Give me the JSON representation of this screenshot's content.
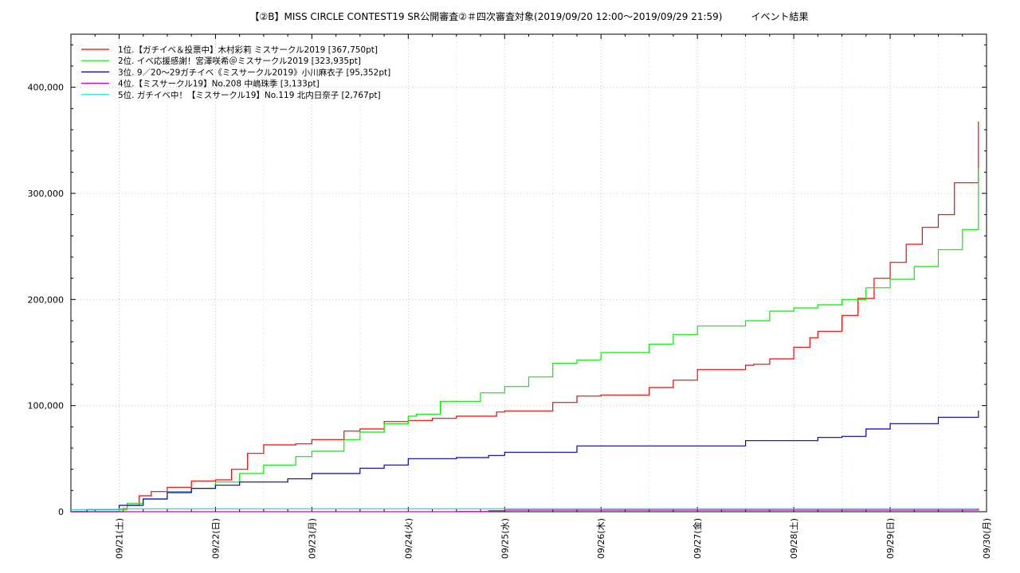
{
  "chart_data": {
    "type": "line",
    "title": "【②B】MISS CIRCLE CONTEST19 SR公開審査②＃四次審査対象(2019/09/20 12:00～2019/09/29 21:59)　　　イベント結果",
    "xlabel": "",
    "ylabel": "",
    "ylim": [
      0,
      450000
    ],
    "y_ticks": [
      0,
      100000,
      200000,
      300000,
      400000
    ],
    "y_tick_labels": [
      "0",
      "100,000",
      "200,000",
      "300,000",
      "400,000"
    ],
    "x_range": [
      "2019-09-20 12:00",
      "2019-09-30 00:00"
    ],
    "x_ticks": [
      "2019-09-21",
      "2019-09-22",
      "2019-09-23",
      "2019-09-24",
      "2019-09-25",
      "2019-09-26",
      "2019-09-27",
      "2019-09-28",
      "2019-09-29",
      "2019-09-30"
    ],
    "x_tick_labels": [
      "09/21(土)",
      "09/22(日)",
      "09/23(月)",
      "09/24(火)",
      "09/25(水)",
      "09/26(木)",
      "09/27(金)",
      "09/28(土)",
      "09/29(日)",
      "09/30(月)"
    ],
    "grid": true,
    "legend_position": "top-left",
    "series": [
      {
        "name": "1位.【ガチイベ＆投票中】木村彩莉 ミスサークル2019 [367,750pt]",
        "color": "#ff0000",
        "x": [
          "2019-09-20 12:00",
          "2019-09-21 01:00",
          "2019-09-21 02:00",
          "2019-09-21 05:00",
          "2019-09-21 08:00",
          "2019-09-21 12:00",
          "2019-09-21 18:00",
          "2019-09-22 00:00",
          "2019-09-22 04:00",
          "2019-09-22 08:00",
          "2019-09-22 12:00",
          "2019-09-22 20:00",
          "2019-09-23 00:00",
          "2019-09-23 08:00",
          "2019-09-23 12:00",
          "2019-09-23 18:00",
          "2019-09-24 00:00",
          "2019-09-24 06:00",
          "2019-09-24 12:00",
          "2019-09-24 22:00",
          "2019-09-25 00:00",
          "2019-09-25 12:00",
          "2019-09-25 18:00",
          "2019-09-26 00:00",
          "2019-09-26 12:00",
          "2019-09-26 18:00",
          "2019-09-27 00:00",
          "2019-09-27 12:00",
          "2019-09-27 14:00",
          "2019-09-27 18:00",
          "2019-09-28 00:00",
          "2019-09-28 04:00",
          "2019-09-28 06:00",
          "2019-09-28 12:00",
          "2019-09-28 16:00",
          "2019-09-28 20:00",
          "2019-09-29 00:00",
          "2019-09-29 04:00",
          "2019-09-29 08:00",
          "2019-09-29 12:00",
          "2019-09-29 16:00",
          "2019-09-29 21:59"
        ],
        "values": [
          0,
          3000,
          6000,
          15000,
          19000,
          23000,
          29000,
          30000,
          40000,
          55000,
          63000,
          64000,
          68000,
          76000,
          78000,
          85000,
          86000,
          88000,
          90000,
          94000,
          95000,
          103000,
          109000,
          110000,
          117000,
          124000,
          134000,
          138000,
          139000,
          144000,
          155000,
          164000,
          170000,
          185000,
          201000,
          220000,
          235000,
          252000,
          268000,
          280000,
          310000,
          367750
        ]
      },
      {
        "name": "2位. イベ応援感謝！宮澤咲希＠ミスサークル2019 [323,935pt]",
        "color": "#00ee00",
        "x": [
          "2019-09-20 12:00",
          "2019-09-21 00:00",
          "2019-09-21 02:00",
          "2019-09-21 06:00",
          "2019-09-21 12:00",
          "2019-09-21 18:00",
          "2019-09-22 00:00",
          "2019-09-22 06:00",
          "2019-09-22 12:00",
          "2019-09-22 20:00",
          "2019-09-23 00:00",
          "2019-09-23 08:00",
          "2019-09-23 12:00",
          "2019-09-23 18:00",
          "2019-09-24 00:00",
          "2019-09-24 02:00",
          "2019-09-24 08:00",
          "2019-09-24 18:00",
          "2019-09-25 00:00",
          "2019-09-25 06:00",
          "2019-09-25 12:00",
          "2019-09-25 18:00",
          "2019-09-26 00:00",
          "2019-09-26 12:00",
          "2019-09-26 18:00",
          "2019-09-27 00:00",
          "2019-09-27 12:00",
          "2019-09-27 18:00",
          "2019-09-28 00:00",
          "2019-09-28 06:00",
          "2019-09-28 12:00",
          "2019-09-28 18:00",
          "2019-09-29 00:00",
          "2019-09-29 06:00",
          "2019-09-29 12:00",
          "2019-09-29 18:00",
          "2019-09-29 21:59"
        ],
        "values": [
          0,
          2000,
          8000,
          12000,
          19000,
          22000,
          28000,
          36000,
          44000,
          52000,
          57000,
          68000,
          75000,
          83000,
          90000,
          92000,
          104000,
          112000,
          118000,
          127000,
          140000,
          143000,
          150000,
          158000,
          167000,
          175000,
          180000,
          189000,
          192000,
          195000,
          200000,
          211000,
          219000,
          231000,
          247000,
          266000,
          323935
        ]
      },
      {
        "name": "3位. 9／20～29ガチイベ《ミスサークル2019》小川麻衣子 [95,352pt]",
        "color": "#0000cc",
        "x": [
          "2019-09-20 12:00",
          "2019-09-20 16:00",
          "2019-09-21 00:00",
          "2019-09-21 06:00",
          "2019-09-21 12:00",
          "2019-09-21 18:00",
          "2019-09-22 00:00",
          "2019-09-22 06:00",
          "2019-09-22 18:00",
          "2019-09-23 00:00",
          "2019-09-23 12:00",
          "2019-09-23 18:00",
          "2019-09-24 00:00",
          "2019-09-24 12:00",
          "2019-09-24 20:00",
          "2019-09-25 00:00",
          "2019-09-25 18:00",
          "2019-09-26 12:00",
          "2019-09-27 12:00",
          "2019-09-28 00:00",
          "2019-09-28 06:00",
          "2019-09-28 12:00",
          "2019-09-28 18:00",
          "2019-09-29 00:00",
          "2019-09-29 06:00",
          "2019-09-29 12:00",
          "2019-09-29 21:59"
        ],
        "values": [
          0,
          2000,
          6000,
          12000,
          18000,
          22000,
          25000,
          28000,
          31000,
          36000,
          41000,
          44000,
          50000,
          51000,
          53000,
          56000,
          62000,
          62000,
          67000,
          67000,
          70000,
          71000,
          78000,
          83000,
          83000,
          89000,
          95352
        ]
      },
      {
        "name": "4位.【ミスサークル19】No.208 中嶋珠季 [3,133pt]",
        "color": "#cc00cc",
        "x": [
          "2019-09-20 12:00",
          "2019-09-24 00:00",
          "2019-09-24 12:00",
          "2019-09-24 20:00",
          "2019-09-25 00:00",
          "2019-09-29 21:59"
        ],
        "values": [
          0,
          0,
          200,
          1000,
          1500,
          3133
        ]
      },
      {
        "name": "5位. ガチイベ中！【ミスサークル19】No.119 北内日奈子 [2,767pt]",
        "color": "#00dddd",
        "x": [
          "2019-09-20 12:00",
          "2019-09-21 00:00",
          "2019-09-29 21:59"
        ],
        "values": [
          2000,
          2767,
          2767
        ]
      }
    ]
  }
}
